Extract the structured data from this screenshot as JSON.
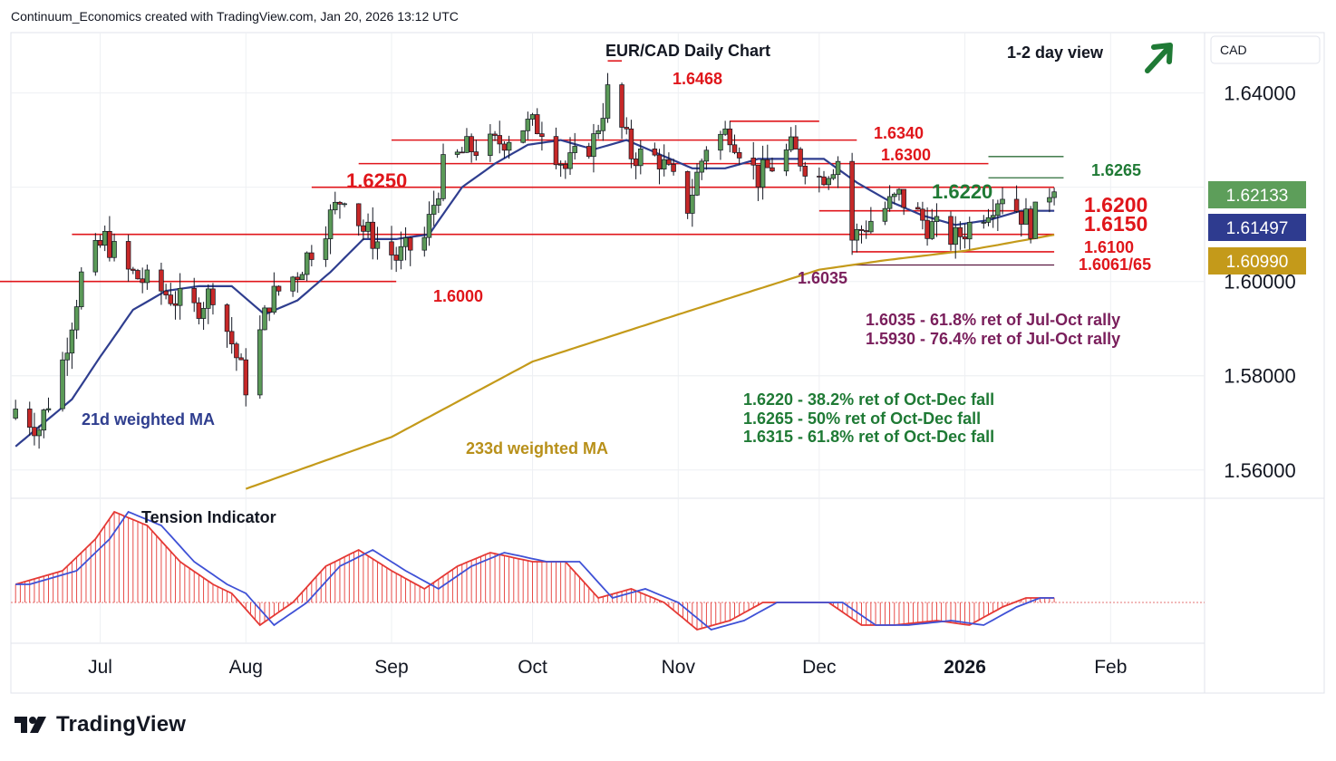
{
  "header": {
    "attribution": "Continuum_Economics created with TradingView.com, Jan 20, 2026 13:12 UTC"
  },
  "brand": {
    "name": "TradingView"
  },
  "colors": {
    "up": "#5b9a58",
    "down": "#c62828",
    "sr_line": "#e0161b",
    "green_text": "#1f7a35",
    "purple": "#7a1f5c",
    "ma21": "#2f3e8f",
    "ma233": "#c49a1a",
    "grid": "#eef0f3",
    "price_green": "#5d9e5a",
    "price_navy": "#2e3b8f",
    "price_gold": "#c49a1a"
  },
  "chart_data": {
    "type": "candlestick",
    "title": "EUR/CAD Daily Chart",
    "view_label": "1-2 day view",
    "view_arrow": "up-arrow-icon",
    "currency": "CAD",
    "y_axis_ticks": [
      "1.64000",
      "1.60000",
      "1.58000",
      "1.56000"
    ],
    "y_axis_tick_values": [
      1.64,
      1.6,
      1.58,
      1.56
    ],
    "ylim": [
      1.554,
      1.6528
    ],
    "x_axis_labels": [
      {
        "label": "Jul",
        "date": "2025-07-01"
      },
      {
        "label": "Aug",
        "date": "2025-08-01"
      },
      {
        "label": "Sep",
        "date": "2025-09-01"
      },
      {
        "label": "Oct",
        "date": "2025-10-01"
      },
      {
        "label": "Nov",
        "date": "2025-11-01"
      },
      {
        "label": "Dec",
        "date": "2025-12-01"
      },
      {
        "label": "2026",
        "date": "2026-01-01"
      },
      {
        "label": "Feb",
        "date": "2026-02-01"
      }
    ],
    "price_labels": [
      {
        "value": "1.62133",
        "price": 1.62133,
        "role": "last-price"
      },
      {
        "value": "1.61497",
        "price": 1.61497,
        "role": "21d-weighted-ma"
      },
      {
        "value": "1.60990",
        "price": 1.6099,
        "role": "233d-weighted-ma"
      }
    ],
    "levels": [
      {
        "label": "1.6468",
        "price": 1.6468,
        "color": "red",
        "from": "2025-10-17",
        "to": "2025-10-20"
      },
      {
        "label": "1.6340",
        "price": 1.634,
        "color": "red",
        "from": "2025-11-12",
        "to": "2025-12-01"
      },
      {
        "label": "1.6300",
        "price": 1.63,
        "color": "red",
        "from": "2025-09-01",
        "to": "2025-12-09"
      },
      {
        "label": "1.6265",
        "price": 1.6265,
        "color": "green",
        "from": "2026-01-06",
        "to": "2026-01-22",
        "thin": true
      },
      {
        "label": "1.6250",
        "price": 1.625,
        "color": "red",
        "from": "2025-08-25",
        "to": "2026-01-06"
      },
      {
        "label": "1.6220",
        "price": 1.622,
        "color": "green",
        "from": "2026-01-06",
        "to": "2026-01-22",
        "thin": true
      },
      {
        "label": "1.6200",
        "price": 1.62,
        "color": "red",
        "from": "2025-08-15",
        "to": "2026-01-20"
      },
      {
        "label": "1.6150",
        "price": 1.615,
        "color": "red",
        "from": "2025-12-01",
        "to": "2026-01-20"
      },
      {
        "label": "1.6100",
        "price": 1.61,
        "color": "red",
        "from": "2025-06-25",
        "to": "2026-01-20"
      },
      {
        "label": "1.6061/65",
        "price": 1.6063,
        "color": "red",
        "from": "2025-12-08",
        "to": "2026-01-20"
      },
      {
        "label": "1.6035",
        "price": 1.6035,
        "color": "purple",
        "from": "2025-12-08",
        "to": "2026-01-20",
        "thin": true
      },
      {
        "label": "1.6000",
        "price": 1.6,
        "color": "red",
        "from": "2025-06-02",
        "to": "2025-09-02"
      }
    ],
    "annotations": [
      {
        "text": "1.6035 - 61.8% ret of Jul-Oct rally",
        "color": "purple"
      },
      {
        "text": "1.5930 - 76.4% ret of Jul-Oct rally",
        "color": "purple"
      },
      {
        "text": "1.6220 - 38.2% ret of Oct-Dec fall",
        "color": "green"
      },
      {
        "text": "1.6265 - 50% ret of Oct-Dec fall",
        "color": "green"
      },
      {
        "text": "1.6315 - 61.8% ret of Oct-Dec fall",
        "color": "green"
      }
    ],
    "ma_labels": {
      "ma21": "21d weighted MA",
      "ma233": "233d weighted MA"
    },
    "indicator_label": "Tension Indicator",
    "closes_knots": [
      [
        "2025-06-13",
        1.573
      ],
      [
        "2025-06-18",
        1.569
      ],
      [
        "2025-06-23",
        1.583
      ],
      [
        "2025-06-27",
        1.601
      ],
      [
        "2025-07-02",
        1.609
      ],
      [
        "2025-07-07",
        1.602
      ],
      [
        "2025-07-14",
        1.598
      ],
      [
        "2025-07-21",
        1.594
      ],
      [
        "2025-07-25",
        1.598
      ],
      [
        "2025-07-29",
        1.587
      ],
      [
        "2025-08-01",
        1.578
      ],
      [
        "2025-08-06",
        1.596
      ],
      [
        "2025-08-12",
        1.602
      ],
      [
        "2025-08-18",
        1.612
      ],
      [
        "2025-08-22",
        1.619
      ],
      [
        "2025-08-26",
        1.611
      ],
      [
        "2025-09-02",
        1.605
      ],
      [
        "2025-09-08",
        1.609
      ],
      [
        "2025-09-12",
        1.624
      ],
      [
        "2025-09-17",
        1.628
      ],
      [
        "2025-09-23",
        1.629
      ],
      [
        "2025-09-29",
        1.633
      ],
      [
        "2025-10-03",
        1.633
      ],
      [
        "2025-10-08",
        1.624
      ],
      [
        "2025-10-14",
        1.63
      ],
      [
        "2025-10-17",
        1.64
      ],
      [
        "2025-10-22",
        1.627
      ],
      [
        "2025-10-28",
        1.626
      ],
      [
        "2025-11-03",
        1.616
      ],
      [
        "2025-11-07",
        1.629
      ],
      [
        "2025-11-12",
        1.632
      ],
      [
        "2025-11-18",
        1.622
      ],
      [
        "2025-11-25",
        1.628
      ],
      [
        "2025-12-01",
        1.622
      ],
      [
        "2025-12-05",
        1.626
      ],
      [
        "2025-12-08",
        1.609
      ],
      [
        "2025-12-12",
        1.613
      ],
      [
        "2025-12-18",
        1.618
      ],
      [
        "2025-12-24",
        1.612
      ],
      [
        "2025-12-30",
        1.609
      ],
      [
        "2026-01-05",
        1.615
      ],
      [
        "2026-01-09",
        1.619
      ],
      [
        "2026-01-15",
        1.612
      ],
      [
        "2026-01-20",
        1.6213
      ]
    ],
    "ma21_knots": [
      [
        "2025-06-13",
        1.565
      ],
      [
        "2025-06-25",
        1.575
      ],
      [
        "2025-07-01",
        1.584
      ],
      [
        "2025-07-08",
        1.594
      ],
      [
        "2025-07-15",
        1.598
      ],
      [
        "2025-07-22",
        1.599
      ],
      [
        "2025-07-29",
        1.599
      ],
      [
        "2025-08-05",
        1.593
      ],
      [
        "2025-08-12",
        1.596
      ],
      [
        "2025-08-19",
        1.602
      ],
      [
        "2025-08-26",
        1.609
      ],
      [
        "2025-09-02",
        1.609
      ],
      [
        "2025-09-09",
        1.61
      ],
      [
        "2025-09-16",
        1.62
      ],
      [
        "2025-09-23",
        1.625
      ],
      [
        "2025-09-30",
        1.629
      ],
      [
        "2025-10-07",
        1.63
      ],
      [
        "2025-10-14",
        1.628
      ],
      [
        "2025-10-21",
        1.63
      ],
      [
        "2025-10-28",
        1.627
      ],
      [
        "2025-11-04",
        1.624
      ],
      [
        "2025-11-11",
        1.624
      ],
      [
        "2025-11-18",
        1.626
      ],
      [
        "2025-11-25",
        1.626
      ],
      [
        "2025-12-02",
        1.626
      ],
      [
        "2025-12-09",
        1.621
      ],
      [
        "2025-12-16",
        1.617
      ],
      [
        "2025-12-23",
        1.614
      ],
      [
        "2025-12-30",
        1.612
      ],
      [
        "2026-01-06",
        1.613
      ],
      [
        "2026-01-13",
        1.615
      ],
      [
        "2026-01-20",
        1.615
      ]
    ],
    "ma233_knots": [
      [
        "2025-08-01",
        1.556
      ],
      [
        "2025-09-01",
        1.567
      ],
      [
        "2025-10-01",
        1.583
      ],
      [
        "2025-11-01",
        1.593
      ],
      [
        "2025-12-01",
        1.6025
      ],
      [
        "2025-12-15",
        1.6045
      ],
      [
        "2026-01-01",
        1.6065
      ],
      [
        "2026-01-20",
        1.6099
      ]
    ],
    "tension_knots": [
      [
        "2025-06-13",
        0.2
      ],
      [
        "2025-06-23",
        0.35
      ],
      [
        "2025-06-30",
        0.7
      ],
      [
        "2025-07-04",
        1.0
      ],
      [
        "2025-07-11",
        0.85
      ],
      [
        "2025-07-18",
        0.45
      ],
      [
        "2025-07-25",
        0.2
      ],
      [
        "2025-07-29",
        0.1
      ],
      [
        "2025-08-04",
        -0.25
      ],
      [
        "2025-08-11",
        0.0
      ],
      [
        "2025-08-18",
        0.4
      ],
      [
        "2025-08-25",
        0.58
      ],
      [
        "2025-09-01",
        0.35
      ],
      [
        "2025-09-08",
        0.15
      ],
      [
        "2025-09-15",
        0.4
      ],
      [
        "2025-09-22",
        0.55
      ],
      [
        "2025-10-01",
        0.45
      ],
      [
        "2025-10-08",
        0.45
      ],
      [
        "2025-10-15",
        0.05
      ],
      [
        "2025-10-22",
        0.15
      ],
      [
        "2025-10-29",
        0.0
      ],
      [
        "2025-11-05",
        -0.3
      ],
      [
        "2025-11-12",
        -0.2
      ],
      [
        "2025-11-19",
        0.0
      ],
      [
        "2025-11-26",
        0.0
      ],
      [
        "2025-12-03",
        0.0
      ],
      [
        "2025-12-10",
        -0.25
      ],
      [
        "2025-12-17",
        -0.25
      ],
      [
        "2025-12-26",
        -0.2
      ],
      [
        "2026-01-02",
        -0.25
      ],
      [
        "2026-01-09",
        -0.05
      ],
      [
        "2026-01-14",
        0.05
      ],
      [
        "2026-01-20",
        0.05
      ]
    ]
  }
}
